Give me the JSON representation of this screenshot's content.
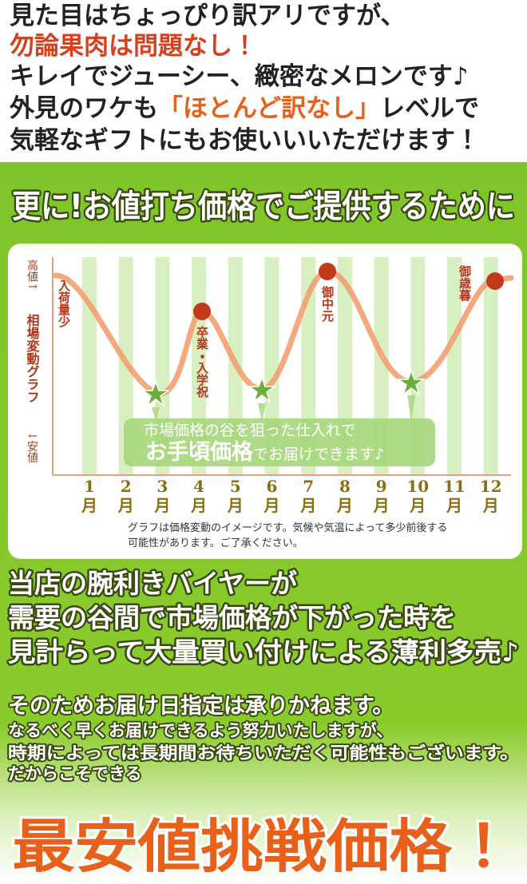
{
  "intro": {
    "line1": "見た目はちょっぴり訳アリですが、",
    "line2": "勿論果肉は問題なし！",
    "line3": "キレイでジューシー、緻密なメロンです♪",
    "line4": [
      "外見のワケも",
      "「ほとんど訳なし」",
      "レベルで"
    ],
    "line5": "気軽なギフトにもお使いいいただけます！"
  },
  "banner": "更に!お値打ち価格でご提供するために",
  "graph": {
    "y_top": "高値↑",
    "y_title": "相場変動グラフ",
    "y_bottom": "↓安値",
    "start_label": "入荷量少",
    "peaks": [
      "卒業・入学祝",
      "御中元",
      "御歳暮"
    ],
    "callout": {
      "line1": "市場価格の谷を狙った仕入れで",
      "big": "お手頃価格",
      "rest": "でお届けできます♪"
    },
    "months": [
      "1",
      "2",
      "3",
      "4",
      "5",
      "6",
      "7",
      "8",
      "9",
      "10",
      "11",
      "12"
    ],
    "month_unit": "月",
    "note": [
      "グラフは価格変動のイメージです。気候や気温によって多少前後する",
      "可能性があります。ご了承ください。"
    ]
  },
  "buyer": [
    "当店の腕利きバイヤーが",
    "需要の谷間で市場価格が下がった時を",
    "見計らって大量買い付けによる薄利多売♪"
  ],
  "delivery": [
    "そのためお届け日指定は承りかねます。",
    "なるべく早くお届けできるよう努力いたしますが、",
    "時期によっては長期間お待ちいただく可能性もございます。",
    "だからこそできる"
  ],
  "headline": "最安値挑戦価格！"
}
